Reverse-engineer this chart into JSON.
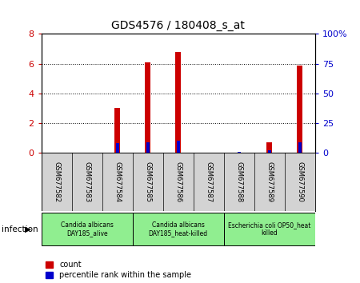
{
  "title": "GDS4576 / 180408_s_at",
  "samples": [
    "GSM677582",
    "GSM677583",
    "GSM677584",
    "GSM677585",
    "GSM677586",
    "GSM677587",
    "GSM677588",
    "GSM677589",
    "GSM677590"
  ],
  "count_values": [
    0,
    0,
    3.0,
    6.1,
    6.8,
    0,
    0,
    0.7,
    5.9
  ],
  "percentile_values": [
    0,
    0,
    8,
    9,
    10,
    0,
    1,
    2,
    9
  ],
  "ylim_left": [
    0,
    8
  ],
  "ylim_right": [
    0,
    100
  ],
  "yticks_left": [
    0,
    2,
    4,
    6,
    8
  ],
  "yticks_right": [
    0,
    25,
    50,
    75,
    100
  ],
  "yticklabels_right": [
    "0",
    "25",
    "50",
    "75",
    "100%"
  ],
  "groups": [
    {
      "label": "Candida albicans\nDAY185_alive",
      "start": 0,
      "end": 3,
      "color": "#90ee90"
    },
    {
      "label": "Candida albicans\nDAY185_heat-killed",
      "start": 3,
      "end": 6,
      "color": "#90ee90"
    },
    {
      "label": "Escherichia coli OP50_heat\nkilled",
      "start": 6,
      "end": 9,
      "color": "#90ee90"
    }
  ],
  "count_color": "#cc0000",
  "percentile_color": "#0000cc",
  "sample_bg_color": "#d3d3d3",
  "plot_bg_color": "#ffffff",
  "group_label": "infection",
  "legend_count": "count",
  "legend_pct": "percentile rank within the sample"
}
